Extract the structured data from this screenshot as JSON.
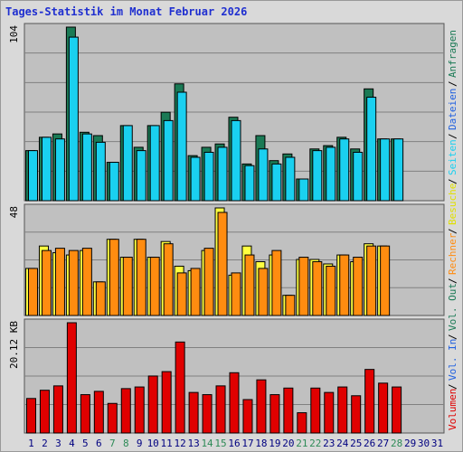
{
  "title": "Tages-Statistik im Monat Februar 2026",
  "colors": {
    "plot_bg": "#c0c0c0",
    "grid": "#808080",
    "anfragen": "#1a7a55",
    "dateien": "#1ad0f0",
    "seiten": "#1ad0f0",
    "besuche": "#ffff40",
    "rechner": "#ff8c10",
    "volumen": "#e00000",
    "weekend_label": "#2e8b57",
    "weekday_label": "#000080"
  },
  "legend": {
    "vol_in": "Volumen",
    "sep1": "/",
    "vol_out": "Vol. In",
    "sep2": "/",
    "vol_out2": "Vol. Out",
    "sep3": "/",
    "rechner": "Rechner",
    "sep4": "/",
    "besuche": "Besuche",
    "sep5": "/",
    "seiten": "Seiten",
    "sep6": "/",
    "dateien": "Dateien",
    "sep7": "/",
    "anfragen": "Anfragen"
  },
  "chart_data": [
    {
      "type": "bar",
      "panel": "top",
      "max_label": "104",
      "ylim": [
        0,
        104
      ],
      "categories": [
        "1",
        "2",
        "3",
        "4",
        "5",
        "6",
        "7",
        "8",
        "9",
        "10",
        "11",
        "12",
        "13",
        "14",
        "15",
        "16",
        "17",
        "18",
        "19",
        "20",
        "21",
        "22",
        "23",
        "24",
        "25",
        "26",
        "27",
        "28",
        "29",
        "30",
        "31"
      ],
      "weekend": [
        false,
        false,
        false,
        false,
        false,
        false,
        true,
        true,
        false,
        false,
        false,
        false,
        false,
        true,
        true,
        false,
        false,
        false,
        false,
        false,
        true,
        true,
        false,
        false,
        false,
        false,
        false,
        true,
        false,
        false,
        false
      ],
      "series": [
        {
          "name": "Anfragen",
          "values": [
            30,
            38,
            40,
            104,
            41,
            39,
            23,
            45,
            32,
            45,
            53,
            70,
            27,
            32,
            34,
            50,
            22,
            39,
            24,
            28,
            13,
            31,
            33,
            38,
            31,
            67,
            37,
            37,
            null,
            null,
            null
          ]
        },
        {
          "name": "Dateien",
          "values": [
            30,
            38,
            37,
            98,
            40,
            35,
            23,
            45,
            30,
            45,
            48,
            65,
            26,
            29,
            32,
            48,
            21,
            31,
            22,
            26,
            13,
            30,
            32,
            37,
            29,
            62,
            37,
            37,
            null,
            null,
            null
          ]
        }
      ]
    },
    {
      "type": "bar",
      "panel": "middle",
      "max_label": "48",
      "ylim": [
        0,
        48
      ],
      "series": [
        {
          "name": "Besuche",
          "values": [
            21,
            31,
            28,
            27,
            29,
            15,
            34,
            26,
            34,
            26,
            33,
            22,
            20,
            29,
            48,
            18,
            31,
            24,
            27,
            9,
            25,
            25,
            23,
            27,
            24,
            32,
            31,
            null,
            null,
            null,
            null
          ]
        },
        {
          "name": "Rechner",
          "values": [
            21,
            29,
            30,
            29,
            30,
            15,
            34,
            26,
            34,
            26,
            32,
            19,
            21,
            30,
            46,
            19,
            27,
            21,
            29,
            9,
            26,
            24,
            22,
            27,
            26,
            31,
            31,
            null,
            null,
            null,
            null
          ]
        }
      ]
    },
    {
      "type": "bar",
      "panel": "bottom",
      "max_label": "20.12 KB",
      "ylim": [
        0,
        20.12
      ],
      "series": [
        {
          "name": "Volumen",
          "values": [
            6.3,
            7.8,
            8.6,
            20.12,
            7.0,
            7.6,
            5.4,
            8.1,
            8.4,
            10.4,
            11.2,
            16.6,
            7.4,
            7.0,
            8.6,
            11.0,
            6.1,
            9.7,
            7.0,
            8.2,
            3.7,
            8.2,
            7.4,
            8.4,
            6.8,
            11.6,
            9.1,
            8.4,
            null,
            null,
            null
          ]
        }
      ]
    }
  ]
}
